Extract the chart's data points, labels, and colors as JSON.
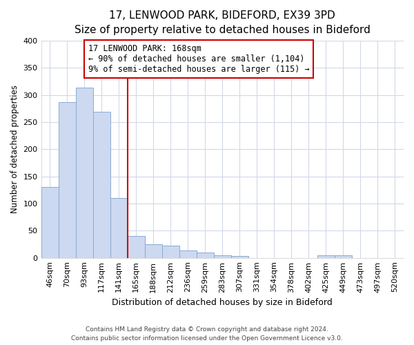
{
  "title": "17, LENWOOD PARK, BIDEFORD, EX39 3PD",
  "subtitle": "Size of property relative to detached houses in Bideford",
  "xlabel": "Distribution of detached houses by size in Bideford",
  "ylabel": "Number of detached properties",
  "bar_labels": [
    "46sqm",
    "70sqm",
    "93sqm",
    "117sqm",
    "141sqm",
    "165sqm",
    "188sqm",
    "212sqm",
    "236sqm",
    "259sqm",
    "283sqm",
    "307sqm",
    "331sqm",
    "354sqm",
    "378sqm",
    "402sqm",
    "425sqm",
    "449sqm",
    "473sqm",
    "497sqm",
    "520sqm"
  ],
  "bar_values": [
    130,
    287,
    314,
    269,
    110,
    40,
    25,
    22,
    13,
    10,
    5,
    3,
    0,
    0,
    0,
    0,
    5,
    5,
    0,
    0,
    0
  ],
  "bar_color": "#ccd9f0",
  "bar_edge_color": "#8aaad4",
  "vline_x_index": 5,
  "vline_color": "#cc0000",
  "annotation_line1": "17 LENWOOD PARK: 168sqm",
  "annotation_line2": "← 90% of detached houses are smaller (1,104)",
  "annotation_line3": "9% of semi-detached houses are larger (115) →",
  "annotation_box_color": "white",
  "annotation_box_edge": "#cc0000",
  "ylim": [
    0,
    400
  ],
  "yticks": [
    0,
    50,
    100,
    150,
    200,
    250,
    300,
    350,
    400
  ],
  "footer1": "Contains HM Land Registry data © Crown copyright and database right 2024.",
  "footer2": "Contains public sector information licensed under the Open Government Licence v3.0.",
  "bg_color": "#ffffff",
  "plot_bg_color": "#ffffff",
  "grid_color": "#d0d8e8",
  "title_fontsize": 11,
  "subtitle_fontsize": 9.5
}
